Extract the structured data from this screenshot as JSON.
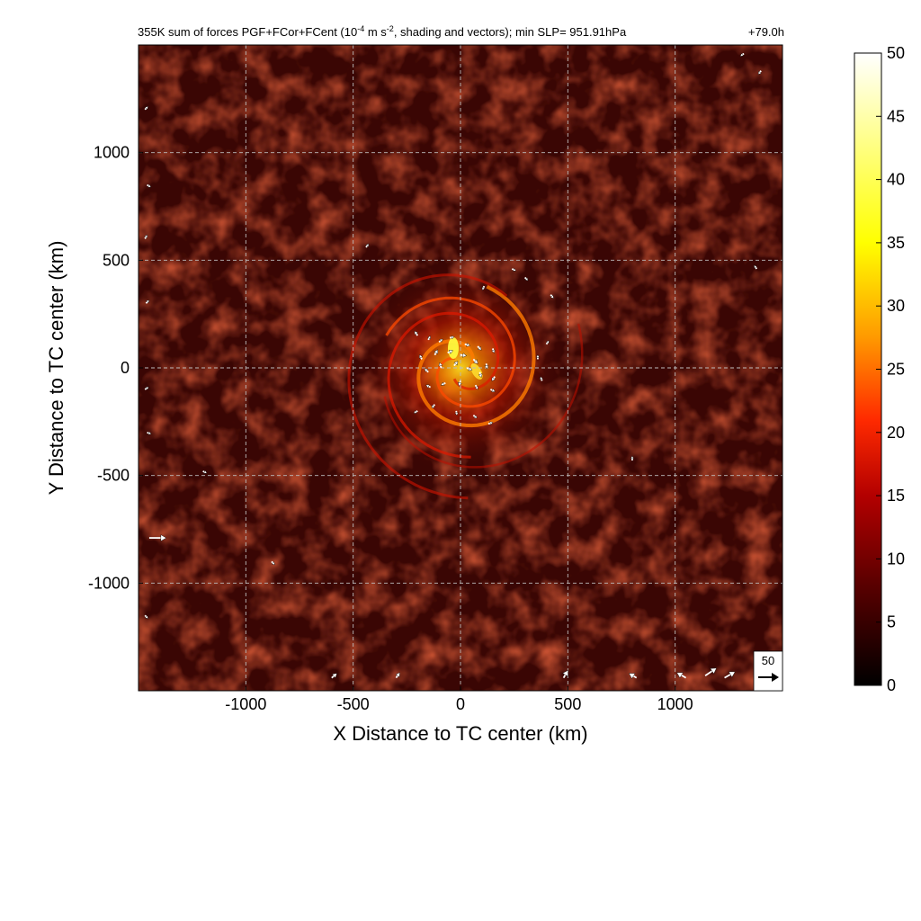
{
  "chart_data": {
    "type": "heatmap",
    "title": "355K sum of forces PGF+FCor+FCent (10",
    "title_exp1": "-4",
    "title_mid": " m s",
    "title_exp2": "-2",
    "title_end": ", shading and vectors); min SLP= 951.91hPa",
    "time_label": "+79.0h",
    "xlabel": "X Distance to TC center (km)",
    "ylabel": "Y Distance to TC center (km)",
    "xlim": [
      -1500,
      1500
    ],
    "ylim": [
      -1500,
      1500
    ],
    "x_ticks": [
      -1000,
      -500,
      0,
      500,
      1000
    ],
    "y_ticks": [
      1000,
      500,
      0,
      -500,
      -1000
    ],
    "grid": true,
    "colorbar": {
      "min": 0,
      "max": 50,
      "ticks": [
        50,
        45,
        40,
        35,
        30,
        25,
        20,
        15,
        10,
        5,
        0
      ],
      "colormap": [
        "#000000",
        "#5a0000",
        "#b30000",
        "#ff2a00",
        "#ff9900",
        "#ffff00",
        "#ffffff"
      ]
    },
    "reference_vector": {
      "label": "50",
      "value": 50
    },
    "background_color": "#3a0604",
    "peak_color": "#ffff40",
    "vectors": [
      {
        "x": -200,
        "y": 150,
        "u": -8,
        "v": 12
      },
      {
        "x": -150,
        "y": 130,
        "u": 5,
        "v": 10
      },
      {
        "x": -100,
        "y": 120,
        "u": 10,
        "v": 8
      },
      {
        "x": -50,
        "y": 140,
        "u": 12,
        "v": 2
      },
      {
        "x": 20,
        "y": 110,
        "u": 14,
        "v": -4
      },
      {
        "x": 80,
        "y": 100,
        "u": 10,
        "v": -10
      },
      {
        "x": 150,
        "y": 90,
        "u": 4,
        "v": -12
      },
      {
        "x": -180,
        "y": 40,
        "u": -6,
        "v": 12
      },
      {
        "x": -120,
        "y": 60,
        "u": 8,
        "v": 14
      },
      {
        "x": -60,
        "y": 70,
        "u": 14,
        "v": 6
      },
      {
        "x": 0,
        "y": 60,
        "u": 16,
        "v": -2
      },
      {
        "x": 60,
        "y": 40,
        "u": 12,
        "v": -12
      },
      {
        "x": 120,
        "y": 20,
        "u": 2,
        "v": -14
      },
      {
        "x": -150,
        "y": -20,
        "u": -10,
        "v": 10
      },
      {
        "x": -90,
        "y": 0,
        "u": -4,
        "v": 14
      },
      {
        "x": -30,
        "y": 10,
        "u": 10,
        "v": 12
      },
      {
        "x": 30,
        "y": 0,
        "u": 14,
        "v": -6
      },
      {
        "x": 90,
        "y": -20,
        "u": 4,
        "v": -14
      },
      {
        "x": 160,
        "y": -40,
        "u": -8,
        "v": -12
      },
      {
        "x": -140,
        "y": -90,
        "u": -12,
        "v": 6
      },
      {
        "x": -70,
        "y": -70,
        "u": -12,
        "v": -6
      },
      {
        "x": 0,
        "y": -60,
        "u": -4,
        "v": -14
      },
      {
        "x": 70,
        "y": -80,
        "u": 6,
        "v": -12
      },
      {
        "x": 140,
        "y": -100,
        "u": 12,
        "v": -6
      },
      {
        "x": -200,
        "y": -200,
        "u": -10,
        "v": -6
      },
      {
        "x": -120,
        "y": -170,
        "u": -8,
        "v": -10
      },
      {
        "x": -20,
        "y": -200,
        "u": 2,
        "v": -12
      },
      {
        "x": 60,
        "y": -220,
        "u": 10,
        "v": -8
      },
      {
        "x": 130,
        "y": -260,
        "u": 12,
        "v": 4
      },
      {
        "x": 360,
        "y": 40,
        "u": 0,
        "v": 10
      },
      {
        "x": 380,
        "y": -60,
        "u": -4,
        "v": 10
      },
      {
        "x": 400,
        "y": 110,
        "u": 6,
        "v": 8
      },
      {
        "x": 240,
        "y": 460,
        "u": 8,
        "v": -4
      },
      {
        "x": 300,
        "y": 420,
        "u": 6,
        "v": -6
      },
      {
        "x": 420,
        "y": 340,
        "u": 8,
        "v": -10
      },
      {
        "x": 110,
        "y": 380,
        "u": -4,
        "v": -10
      },
      {
        "x": -440,
        "y": 560,
        "u": 6,
        "v": 8
      },
      {
        "x": 800,
        "y": -430,
        "u": 0,
        "v": 10
      },
      {
        "x": -1200,
        "y": -480,
        "u": 8,
        "v": -4
      },
      {
        "x": -880,
        "y": -900,
        "u": 6,
        "v": -6
      },
      {
        "x": 1380,
        "y": 460,
        "u": -6,
        "v": 8
      },
      {
        "x": -1450,
        "y": -790,
        "u": 45,
        "v": 0
      },
      {
        "x": -1470,
        "y": 1200,
        "u": 8,
        "v": 8
      },
      {
        "x": -1460,
        "y": 850,
        "u": 10,
        "v": -6
      },
      {
        "x": -1470,
        "y": 600,
        "u": 6,
        "v": 10
      },
      {
        "x": -1465,
        "y": 300,
        "u": 8,
        "v": 8
      },
      {
        "x": -1470,
        "y": -100,
        "u": 10,
        "v": 6
      },
      {
        "x": -1460,
        "y": -300,
        "u": 10,
        "v": -4
      },
      {
        "x": -1470,
        "y": -1150,
        "u": 8,
        "v": -8
      },
      {
        "x": -600,
        "y": -1440,
        "u": 14,
        "v": 12
      },
      {
        "x": -300,
        "y": -1440,
        "u": 10,
        "v": 14
      },
      {
        "x": 480,
        "y": -1440,
        "u": 12,
        "v": 20
      },
      {
        "x": 820,
        "y": -1440,
        "u": -20,
        "v": 12
      },
      {
        "x": 1050,
        "y": -1440,
        "u": -24,
        "v": 14
      },
      {
        "x": 1140,
        "y": -1430,
        "u": 30,
        "v": 20
      },
      {
        "x": 1230,
        "y": -1440,
        "u": 28,
        "v": 16
      },
      {
        "x": 1320,
        "y": 1460,
        "u": -8,
        "v": -6
      },
      {
        "x": 1400,
        "y": 1380,
        "u": -6,
        "v": -8
      }
    ]
  }
}
